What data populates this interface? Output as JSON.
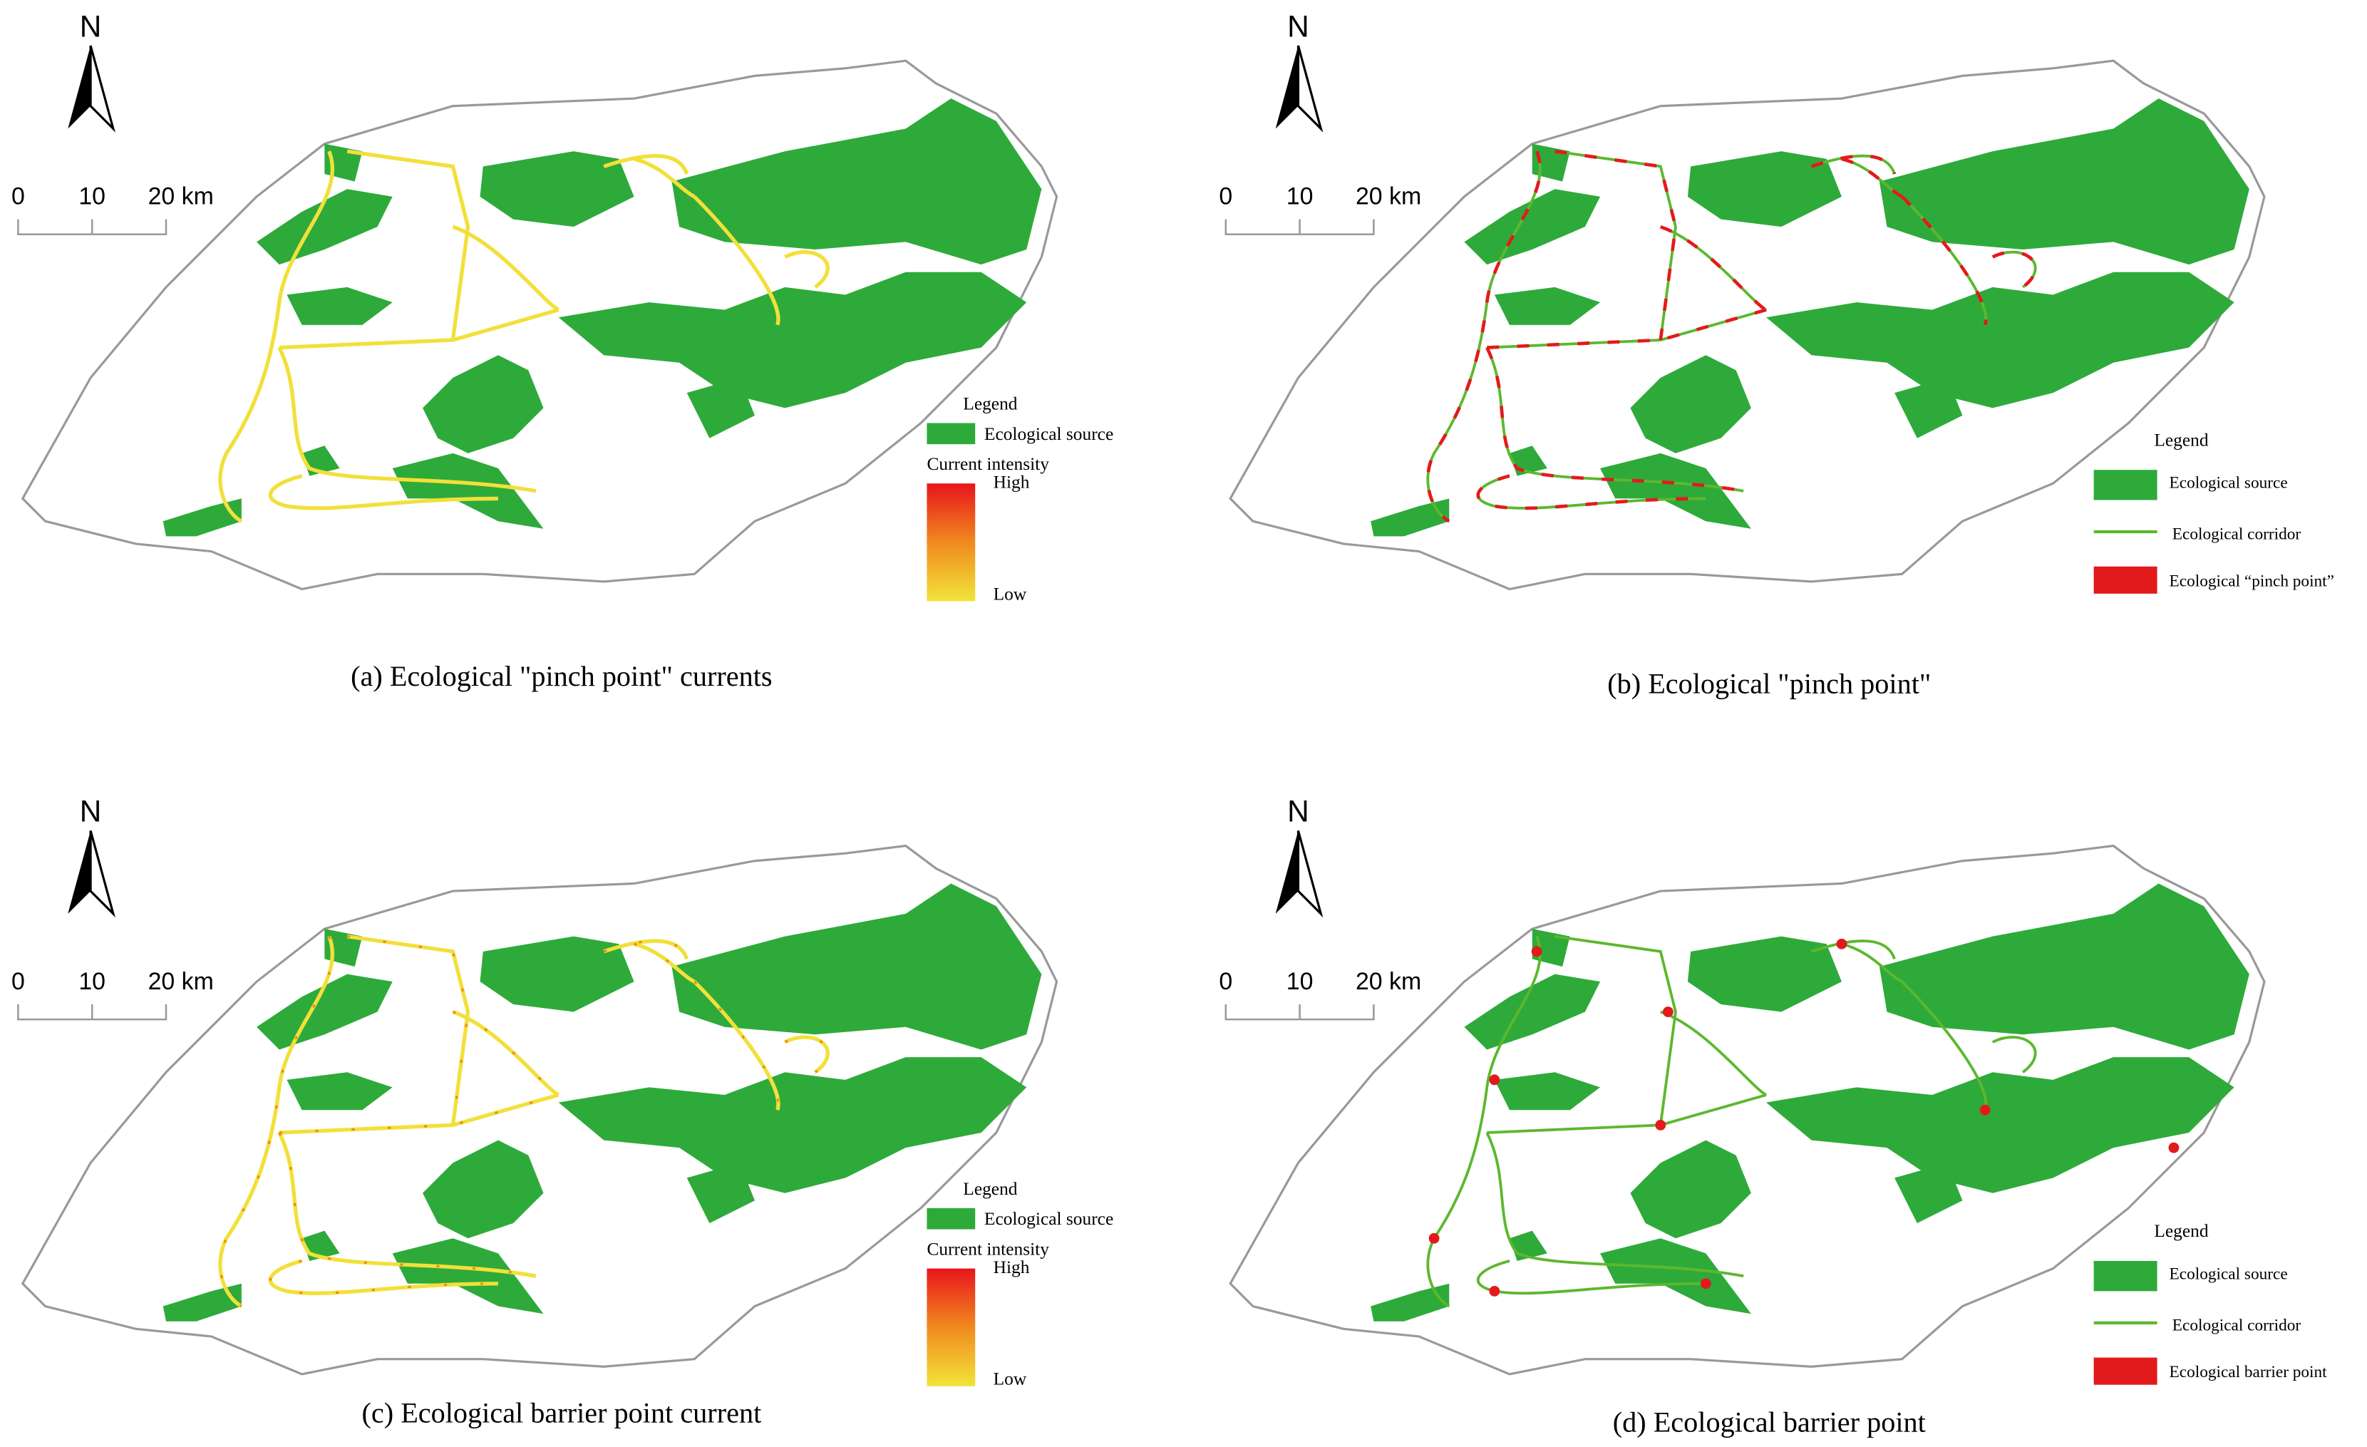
{
  "panels": [
    {
      "north": "N",
      "scale": [
        "0",
        "10",
        "20 km"
      ],
      "legend": {
        "title": "Legend",
        "items": [
          "Ecological source",
          "Current intensity"
        ],
        "high": "High",
        "low": "Low"
      },
      "caption": "(a) Ecological \"pinch point\" currents"
    },
    {
      "north": "N",
      "scale": [
        "0",
        "10",
        "20 km"
      ],
      "legend": {
        "title": "Legend",
        "items": [
          "Ecological source",
          "Ecological corridor",
          "Ecological “pinch point”"
        ]
      },
      "caption": "(b) Ecological \"pinch point\""
    },
    {
      "north": "N",
      "scale": [
        "0",
        "10",
        "20 km"
      ],
      "legend": {
        "title": "Legend",
        "items": [
          "Ecological source",
          "Current intensity"
        ],
        "high": "High",
        "low": "Low"
      },
      "caption": "(c) Ecological barrier point current"
    },
    {
      "north": "N",
      "scale": [
        "0",
        "10",
        "20 km"
      ],
      "legend": {
        "title": "Legend",
        "items": [
          "Ecological source",
          "Ecological corridor",
          "Ecological barrier point"
        ]
      },
      "caption": "(d) Ecological barrier point"
    }
  ]
}
